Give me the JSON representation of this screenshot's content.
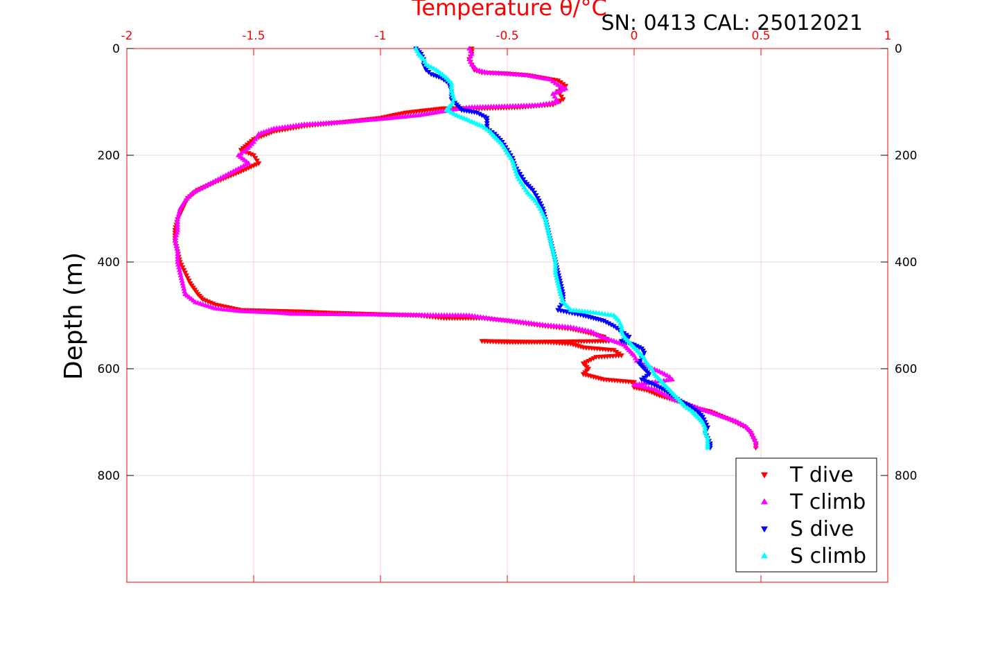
{
  "header": {
    "x_title": "Temperature θ/°C",
    "serial_label": "SN: 0413  CAL: 25012021"
  },
  "y_axis": {
    "title": "Depth (m)"
  },
  "colors": {
    "t_dive": "#ff0000",
    "t_climb": "#ff00ff",
    "s_dive": "#0000ff",
    "s_climb": "#00ffff",
    "top_axis": "#ff0000",
    "grid": "#dddddd",
    "grid_red": "#ffcccc"
  },
  "chart_data": {
    "type": "scatter",
    "x_label": "Temperature θ/°C",
    "y_label": "Depth (m)",
    "xlim": [
      -2,
      1
    ],
    "ylim": [
      0,
      1000
    ],
    "y_reversed": true,
    "x_ticks": [
      "-2",
      "-1.5",
      "-1",
      "-0.5",
      "0",
      "0.5",
      "1"
    ],
    "x_tick_values": [
      -2,
      -1.5,
      -1,
      -0.5,
      0,
      0.5,
      1
    ],
    "y_ticks_left": [
      "0",
      "200",
      "400",
      "600",
      "800"
    ],
    "y_ticks_right": [
      "0",
      "200",
      "400",
      "600",
      "800"
    ],
    "y_tick_values": [
      0,
      200,
      400,
      600,
      800
    ],
    "grid": true,
    "legend_position": "bottom-right",
    "series": [
      {
        "name": "T dive",
        "marker": "triangle-down",
        "color": "#ff0000",
        "points": [
          [
            -0.64,
            0
          ],
          [
            -0.64,
            10
          ],
          [
            -0.65,
            20
          ],
          [
            -0.64,
            30
          ],
          [
            -0.63,
            40
          ],
          [
            -0.6,
            45
          ],
          [
            -0.5,
            47
          ],
          [
            -0.42,
            50
          ],
          [
            -0.3,
            60
          ],
          [
            -0.27,
            70
          ],
          [
            -0.3,
            80
          ],
          [
            -0.28,
            95
          ],
          [
            -0.32,
            105
          ],
          [
            -0.45,
            110
          ],
          [
            -0.6,
            112
          ],
          [
            -0.75,
            112
          ],
          [
            -0.9,
            120
          ],
          [
            -1.0,
            130
          ],
          [
            -1.15,
            138
          ],
          [
            -1.3,
            145
          ],
          [
            -1.42,
            155
          ],
          [
            -1.5,
            170
          ],
          [
            -1.55,
            190
          ],
          [
            -1.5,
            200
          ],
          [
            -1.48,
            215
          ],
          [
            -1.55,
            230
          ],
          [
            -1.65,
            250
          ],
          [
            -1.72,
            265
          ],
          [
            -1.76,
            280
          ],
          [
            -1.78,
            300
          ],
          [
            -1.8,
            320
          ],
          [
            -1.81,
            340
          ],
          [
            -1.81,
            360
          ],
          [
            -1.8,
            380
          ],
          [
            -1.79,
            400
          ],
          [
            -1.77,
            420
          ],
          [
            -1.75,
            440
          ],
          [
            -1.72,
            460
          ],
          [
            -1.7,
            470
          ],
          [
            -1.65,
            480
          ],
          [
            -1.55,
            490
          ],
          [
            -1.3,
            493
          ],
          [
            -1.2,
            495
          ],
          [
            -1.0,
            498
          ],
          [
            -0.85,
            500
          ],
          [
            -0.75,
            505
          ],
          [
            -0.6,
            505
          ],
          [
            -0.5,
            510
          ],
          [
            -0.35,
            520
          ],
          [
            -0.25,
            525
          ],
          [
            -0.2,
            530
          ],
          [
            -0.12,
            540
          ],
          [
            -0.1,
            548
          ],
          [
            -0.5,
            550
          ],
          [
            -0.6,
            548
          ],
          [
            -0.35,
            550
          ],
          [
            -0.25,
            553
          ],
          [
            -0.2,
            560
          ],
          [
            -0.08,
            565
          ],
          [
            -0.05,
            575
          ],
          [
            -0.15,
            578
          ],
          [
            -0.2,
            590
          ],
          [
            -0.18,
            600
          ],
          [
            -0.2,
            610
          ],
          [
            -0.12,
            620
          ],
          [
            0.0,
            625
          ],
          [
            0.0,
            635
          ],
          [
            0.05,
            640
          ],
          [
            0.1,
            650
          ],
          [
            0.2,
            665
          ],
          [
            0.25,
            675
          ],
          [
            0.3,
            680
          ],
          [
            0.35,
            690
          ],
          [
            0.4,
            700
          ],
          [
            0.44,
            710
          ],
          [
            0.46,
            720
          ],
          [
            0.47,
            730
          ],
          [
            0.48,
            740
          ],
          [
            0.48,
            748
          ]
        ]
      },
      {
        "name": "T climb",
        "marker": "triangle-up",
        "color": "#ff00ff",
        "points": [
          [
            -0.65,
            0
          ],
          [
            -0.64,
            10
          ],
          [
            -0.65,
            20
          ],
          [
            -0.64,
            30
          ],
          [
            -0.62,
            40
          ],
          [
            -0.58,
            45
          ],
          [
            -0.5,
            47
          ],
          [
            -0.42,
            50
          ],
          [
            -0.33,
            58
          ],
          [
            -0.3,
            68
          ],
          [
            -0.27,
            75
          ],
          [
            -0.32,
            85
          ],
          [
            -0.3,
            100
          ],
          [
            -0.38,
            106
          ],
          [
            -0.5,
            108
          ],
          [
            -0.65,
            110
          ],
          [
            -0.72,
            115
          ],
          [
            -0.85,
            125
          ],
          [
            -1.0,
            132
          ],
          [
            -1.15,
            138
          ],
          [
            -1.3,
            142
          ],
          [
            -1.42,
            150
          ],
          [
            -1.48,
            160
          ],
          [
            -1.5,
            175
          ],
          [
            -1.53,
            190
          ],
          [
            -1.56,
            200
          ],
          [
            -1.52,
            215
          ],
          [
            -1.6,
            235
          ],
          [
            -1.68,
            255
          ],
          [
            -1.74,
            270
          ],
          [
            -1.77,
            285
          ],
          [
            -1.79,
            300
          ],
          [
            -1.8,
            320
          ],
          [
            -1.8,
            340
          ],
          [
            -1.81,
            360
          ],
          [
            -1.8,
            380
          ],
          [
            -1.8,
            400
          ],
          [
            -1.79,
            420
          ],
          [
            -1.78,
            440
          ],
          [
            -1.77,
            460
          ],
          [
            -1.73,
            475
          ],
          [
            -1.65,
            487
          ],
          [
            -1.55,
            492
          ],
          [
            -1.4,
            495
          ],
          [
            -1.35,
            497
          ],
          [
            -0.65,
            500
          ],
          [
            -0.55,
            507
          ],
          [
            -0.45,
            512
          ],
          [
            -0.35,
            518
          ],
          [
            -0.25,
            522
          ],
          [
            -0.17,
            530
          ],
          [
            -0.13,
            540
          ],
          [
            -0.08,
            548
          ],
          [
            -0.04,
            555
          ],
          [
            -0.02,
            565
          ],
          [
            0.0,
            575
          ],
          [
            0.01,
            585
          ],
          [
            0.05,
            595
          ],
          [
            0.1,
            605
          ],
          [
            0.14,
            615
          ],
          [
            0.15,
            620
          ],
          [
            0.05,
            627
          ],
          [
            0.0,
            630
          ],
          [
            0.08,
            638
          ],
          [
            0.12,
            648
          ],
          [
            0.16,
            658
          ],
          [
            0.22,
            668
          ],
          [
            0.28,
            678
          ],
          [
            0.34,
            688
          ],
          [
            0.4,
            698
          ],
          [
            0.44,
            708
          ],
          [
            0.46,
            718
          ],
          [
            0.47,
            728
          ],
          [
            0.48,
            738
          ],
          [
            0.48,
            745
          ]
        ]
      },
      {
        "name": "S dive",
        "marker": "triangle-down",
        "color": "#0000ff",
        "points": [
          [
            -0.86,
            0
          ],
          [
            -0.84,
            10
          ],
          [
            -0.83,
            20
          ],
          [
            -0.83,
            30
          ],
          [
            -0.82,
            40
          ],
          [
            -0.8,
            48
          ],
          [
            -0.76,
            55
          ],
          [
            -0.73,
            65
          ],
          [
            -0.72,
            80
          ],
          [
            -0.72,
            95
          ],
          [
            -0.7,
            105
          ],
          [
            -0.68,
            115
          ],
          [
            -0.62,
            120
          ],
          [
            -0.58,
            130
          ],
          [
            -0.58,
            140
          ],
          [
            -0.58,
            150
          ],
          [
            -0.55,
            160
          ],
          [
            -0.52,
            175
          ],
          [
            -0.5,
            190
          ],
          [
            -0.48,
            205
          ],
          [
            -0.47,
            220
          ],
          [
            -0.45,
            235
          ],
          [
            -0.43,
            250
          ],
          [
            -0.4,
            265
          ],
          [
            -0.38,
            280
          ],
          [
            -0.36,
            300
          ],
          [
            -0.35,
            320
          ],
          [
            -0.34,
            340
          ],
          [
            -0.33,
            360
          ],
          [
            -0.32,
            380
          ],
          [
            -0.31,
            400
          ],
          [
            -0.3,
            420
          ],
          [
            -0.29,
            440
          ],
          [
            -0.28,
            460
          ],
          [
            -0.28,
            475
          ],
          [
            -0.3,
            490
          ],
          [
            -0.2,
            500
          ],
          [
            -0.12,
            510
          ],
          [
            -0.08,
            520
          ],
          [
            -0.05,
            530
          ],
          [
            -0.02,
            540
          ],
          [
            -0.05,
            548
          ],
          [
            0.0,
            555
          ],
          [
            0.03,
            562
          ],
          [
            0.04,
            570
          ],
          [
            0.03,
            580
          ],
          [
            0.02,
            590
          ],
          [
            0.04,
            600
          ],
          [
            0.06,
            610
          ],
          [
            0.03,
            620
          ],
          [
            0.08,
            630
          ],
          [
            0.12,
            640
          ],
          [
            0.15,
            650
          ],
          [
            0.18,
            660
          ],
          [
            0.22,
            670
          ],
          [
            0.25,
            680
          ],
          [
            0.27,
            690
          ],
          [
            0.28,
            700
          ],
          [
            0.29,
            710
          ],
          [
            0.28,
            720
          ],
          [
            0.29,
            730
          ],
          [
            0.3,
            740
          ],
          [
            0.3,
            748
          ]
        ]
      },
      {
        "name": "S climb",
        "marker": "triangle-up",
        "color": "#00ffff",
        "points": [
          [
            -0.86,
            0
          ],
          [
            -0.85,
            10
          ],
          [
            -0.83,
            20
          ],
          [
            -0.82,
            30
          ],
          [
            -0.78,
            40
          ],
          [
            -0.74,
            55
          ],
          [
            -0.72,
            65
          ],
          [
            -0.72,
            80
          ],
          [
            -0.71,
            95
          ],
          [
            -0.72,
            105
          ],
          [
            -0.74,
            115
          ],
          [
            -0.7,
            125
          ],
          [
            -0.65,
            135
          ],
          [
            -0.6,
            145
          ],
          [
            -0.57,
            155
          ],
          [
            -0.55,
            165
          ],
          [
            -0.52,
            180
          ],
          [
            -0.5,
            195
          ],
          [
            -0.48,
            210
          ],
          [
            -0.47,
            225
          ],
          [
            -0.46,
            240
          ],
          [
            -0.44,
            255
          ],
          [
            -0.42,
            270
          ],
          [
            -0.39,
            285
          ],
          [
            -0.37,
            300
          ],
          [
            -0.35,
            320
          ],
          [
            -0.34,
            340
          ],
          [
            -0.33,
            360
          ],
          [
            -0.32,
            380
          ],
          [
            -0.31,
            400
          ],
          [
            -0.31,
            420
          ],
          [
            -0.3,
            440
          ],
          [
            -0.29,
            460
          ],
          [
            -0.28,
            475
          ],
          [
            -0.25,
            490
          ],
          [
            -0.15,
            495
          ],
          [
            -0.08,
            500
          ],
          [
            -0.06,
            510
          ],
          [
            -0.05,
            520
          ],
          [
            -0.05,
            530
          ],
          [
            -0.04,
            540
          ],
          [
            -0.02,
            550
          ],
          [
            0.0,
            560
          ],
          [
            0.02,
            570
          ],
          [
            0.04,
            580
          ],
          [
            0.05,
            590
          ],
          [
            0.07,
            600
          ],
          [
            0.08,
            610
          ],
          [
            0.1,
            620
          ],
          [
            0.12,
            630
          ],
          [
            0.14,
            640
          ],
          [
            0.16,
            650
          ],
          [
            0.18,
            660
          ],
          [
            0.2,
            670
          ],
          [
            0.23,
            680
          ],
          [
            0.25,
            690
          ],
          [
            0.27,
            700
          ],
          [
            0.28,
            710
          ],
          [
            0.28,
            720
          ],
          [
            0.29,
            730
          ],
          [
            0.29,
            740
          ],
          [
            0.29,
            748
          ]
        ]
      }
    ]
  }
}
